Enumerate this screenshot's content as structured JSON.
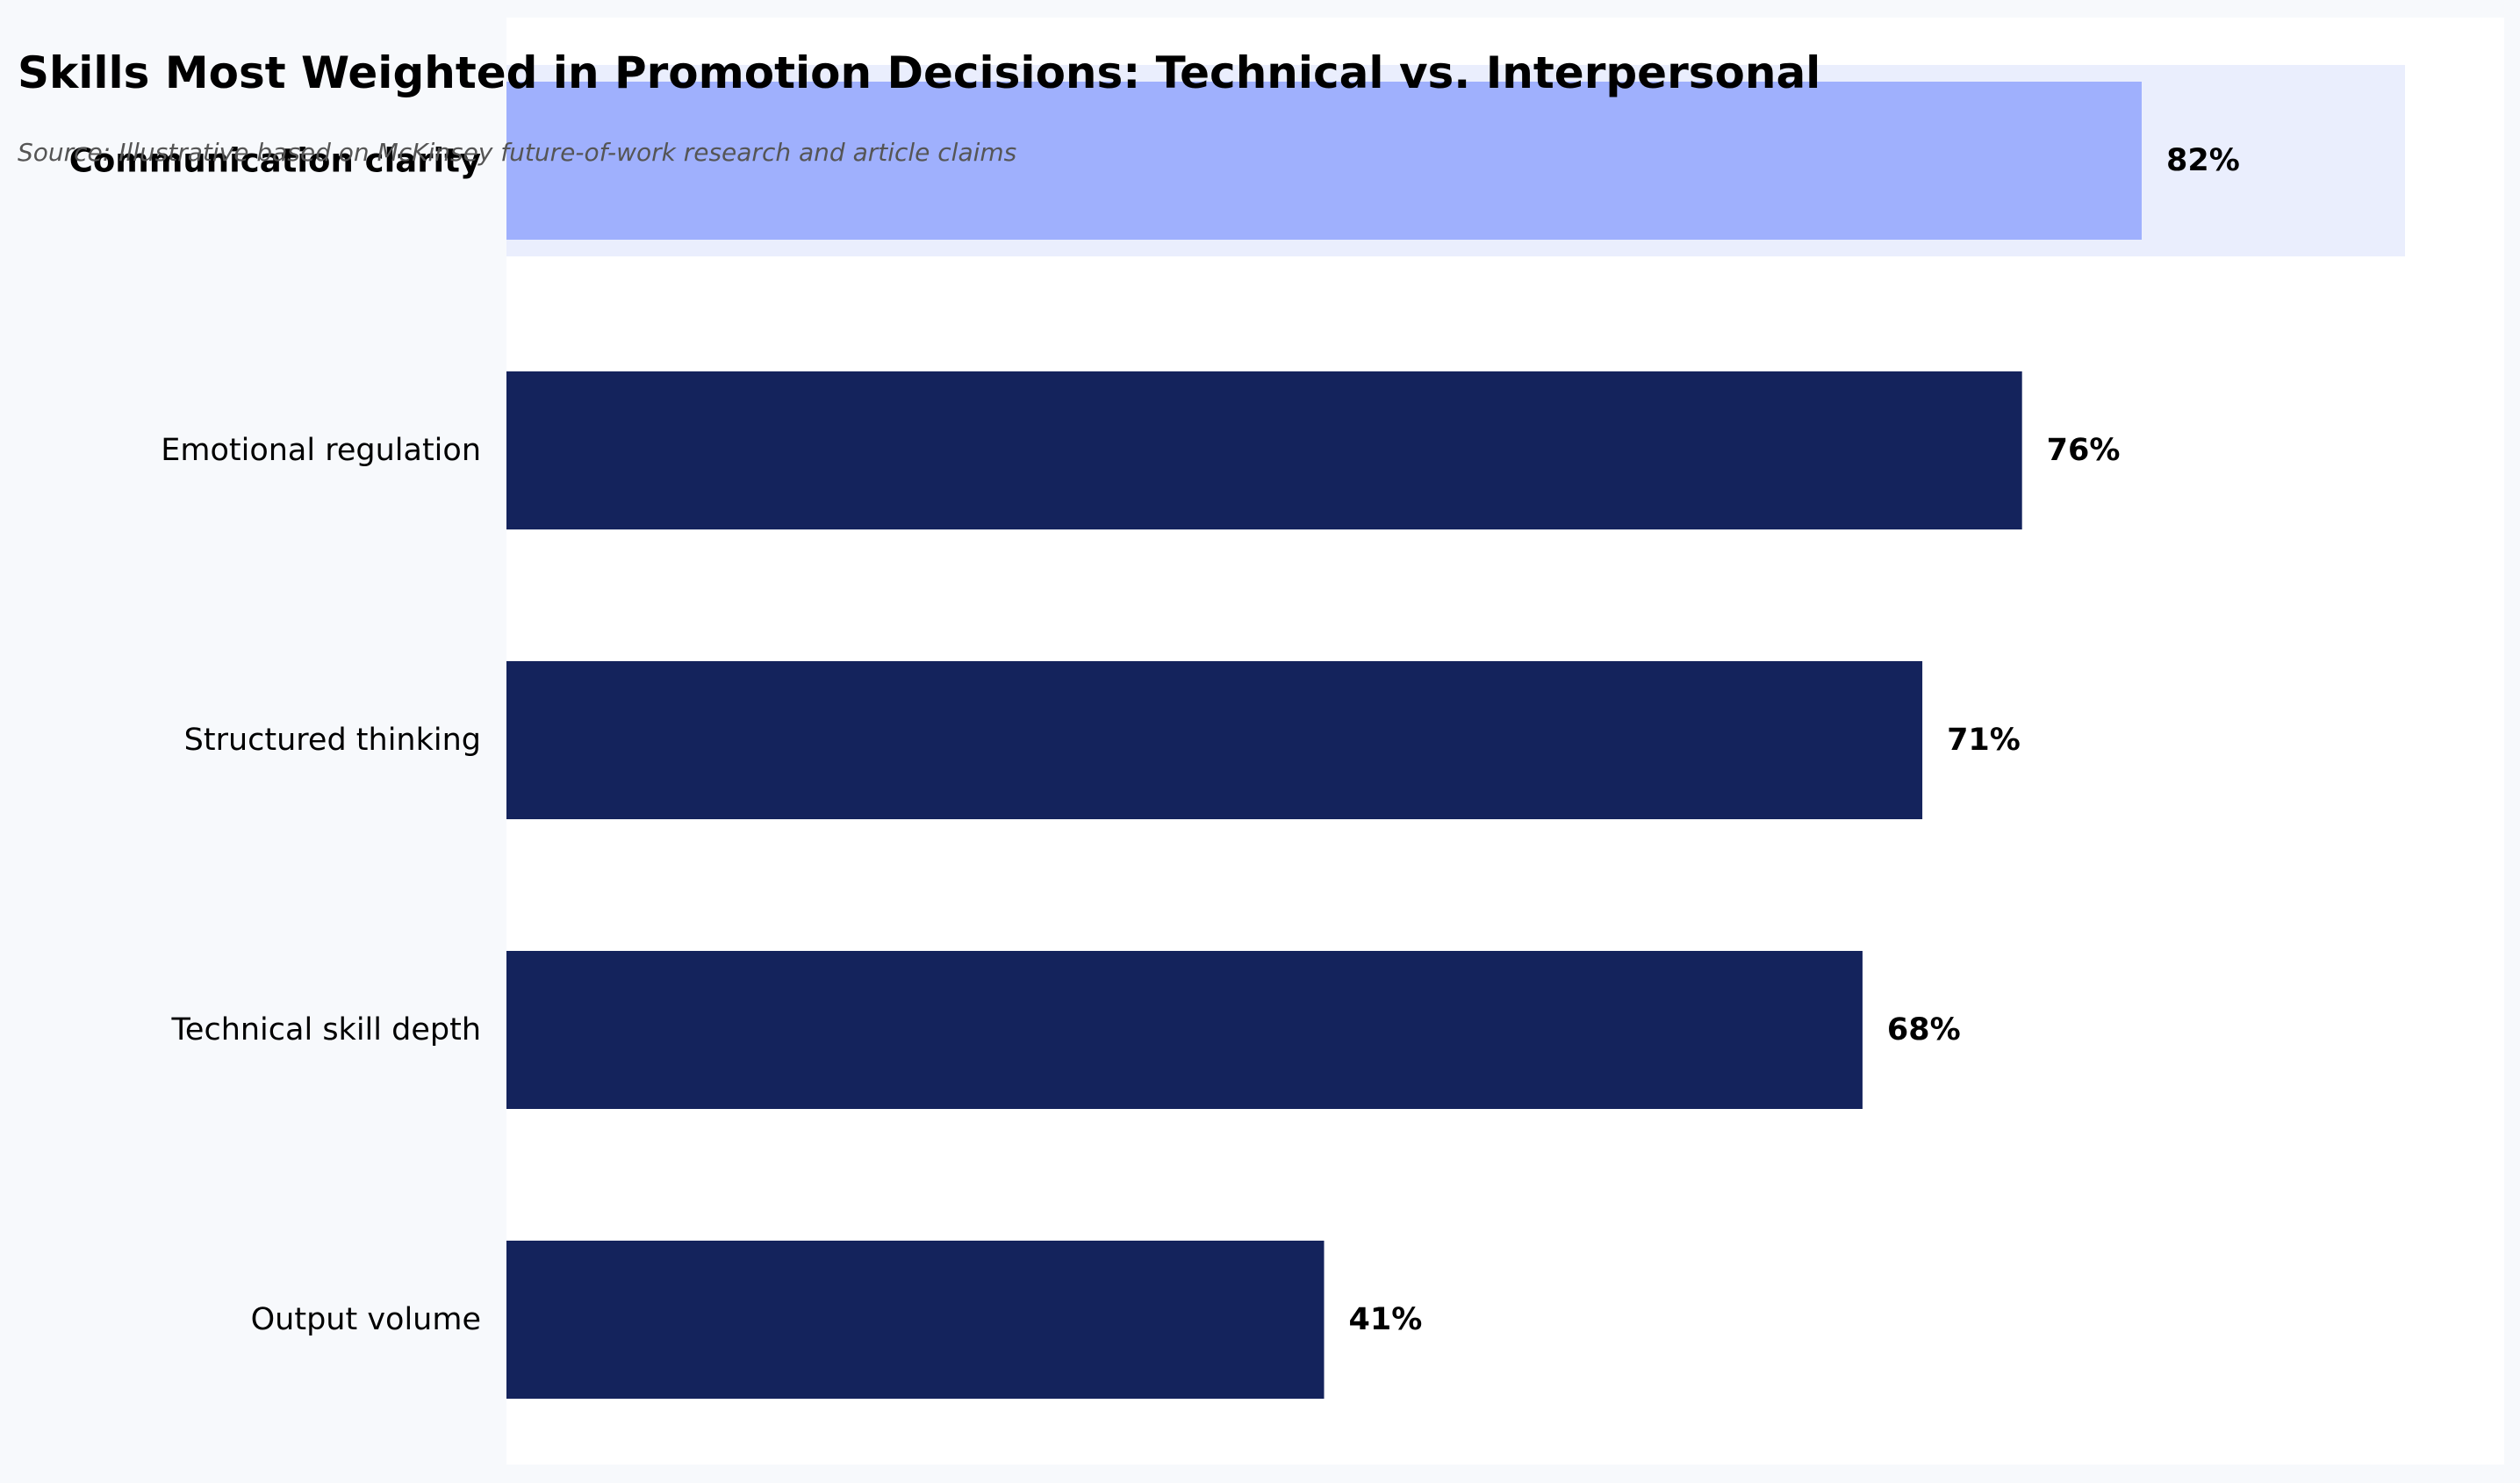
{
  "title": "Skills Most Weighted in Promotion Decisions: Technical vs. Interpersonal",
  "subtitle": "Source: Illustrative based on McKinsey future-of-work research and article claims",
  "colors": {
    "page_background": "#f7f9fc",
    "plot_background": "#ffffff",
    "bar": "#14235c",
    "highlight_bar": "#9fb0fd",
    "highlight_band": "#eaeefd",
    "highlight_label": "#1c2b5e",
    "text": "#000000",
    "subtitle_text": "#555555"
  },
  "chart_data": {
    "type": "bar",
    "orientation": "horizontal",
    "categories": [
      "Communication clarity",
      "Emotional regulation",
      "Structured thinking",
      "Technical skill depth",
      "Output volume"
    ],
    "values": [
      82,
      76,
      71,
      68,
      41
    ],
    "value_labels": [
      "82%",
      "76%",
      "71%",
      "68%",
      "41%"
    ],
    "highlight_index": 0,
    "xlim": [
      0,
      100
    ],
    "grid": false,
    "title": "Skills Most Weighted in Promotion Decisions: Technical vs. Interpersonal",
    "subtitle": "Source: Illustrative based on McKinsey future-of-work research and article claims"
  }
}
